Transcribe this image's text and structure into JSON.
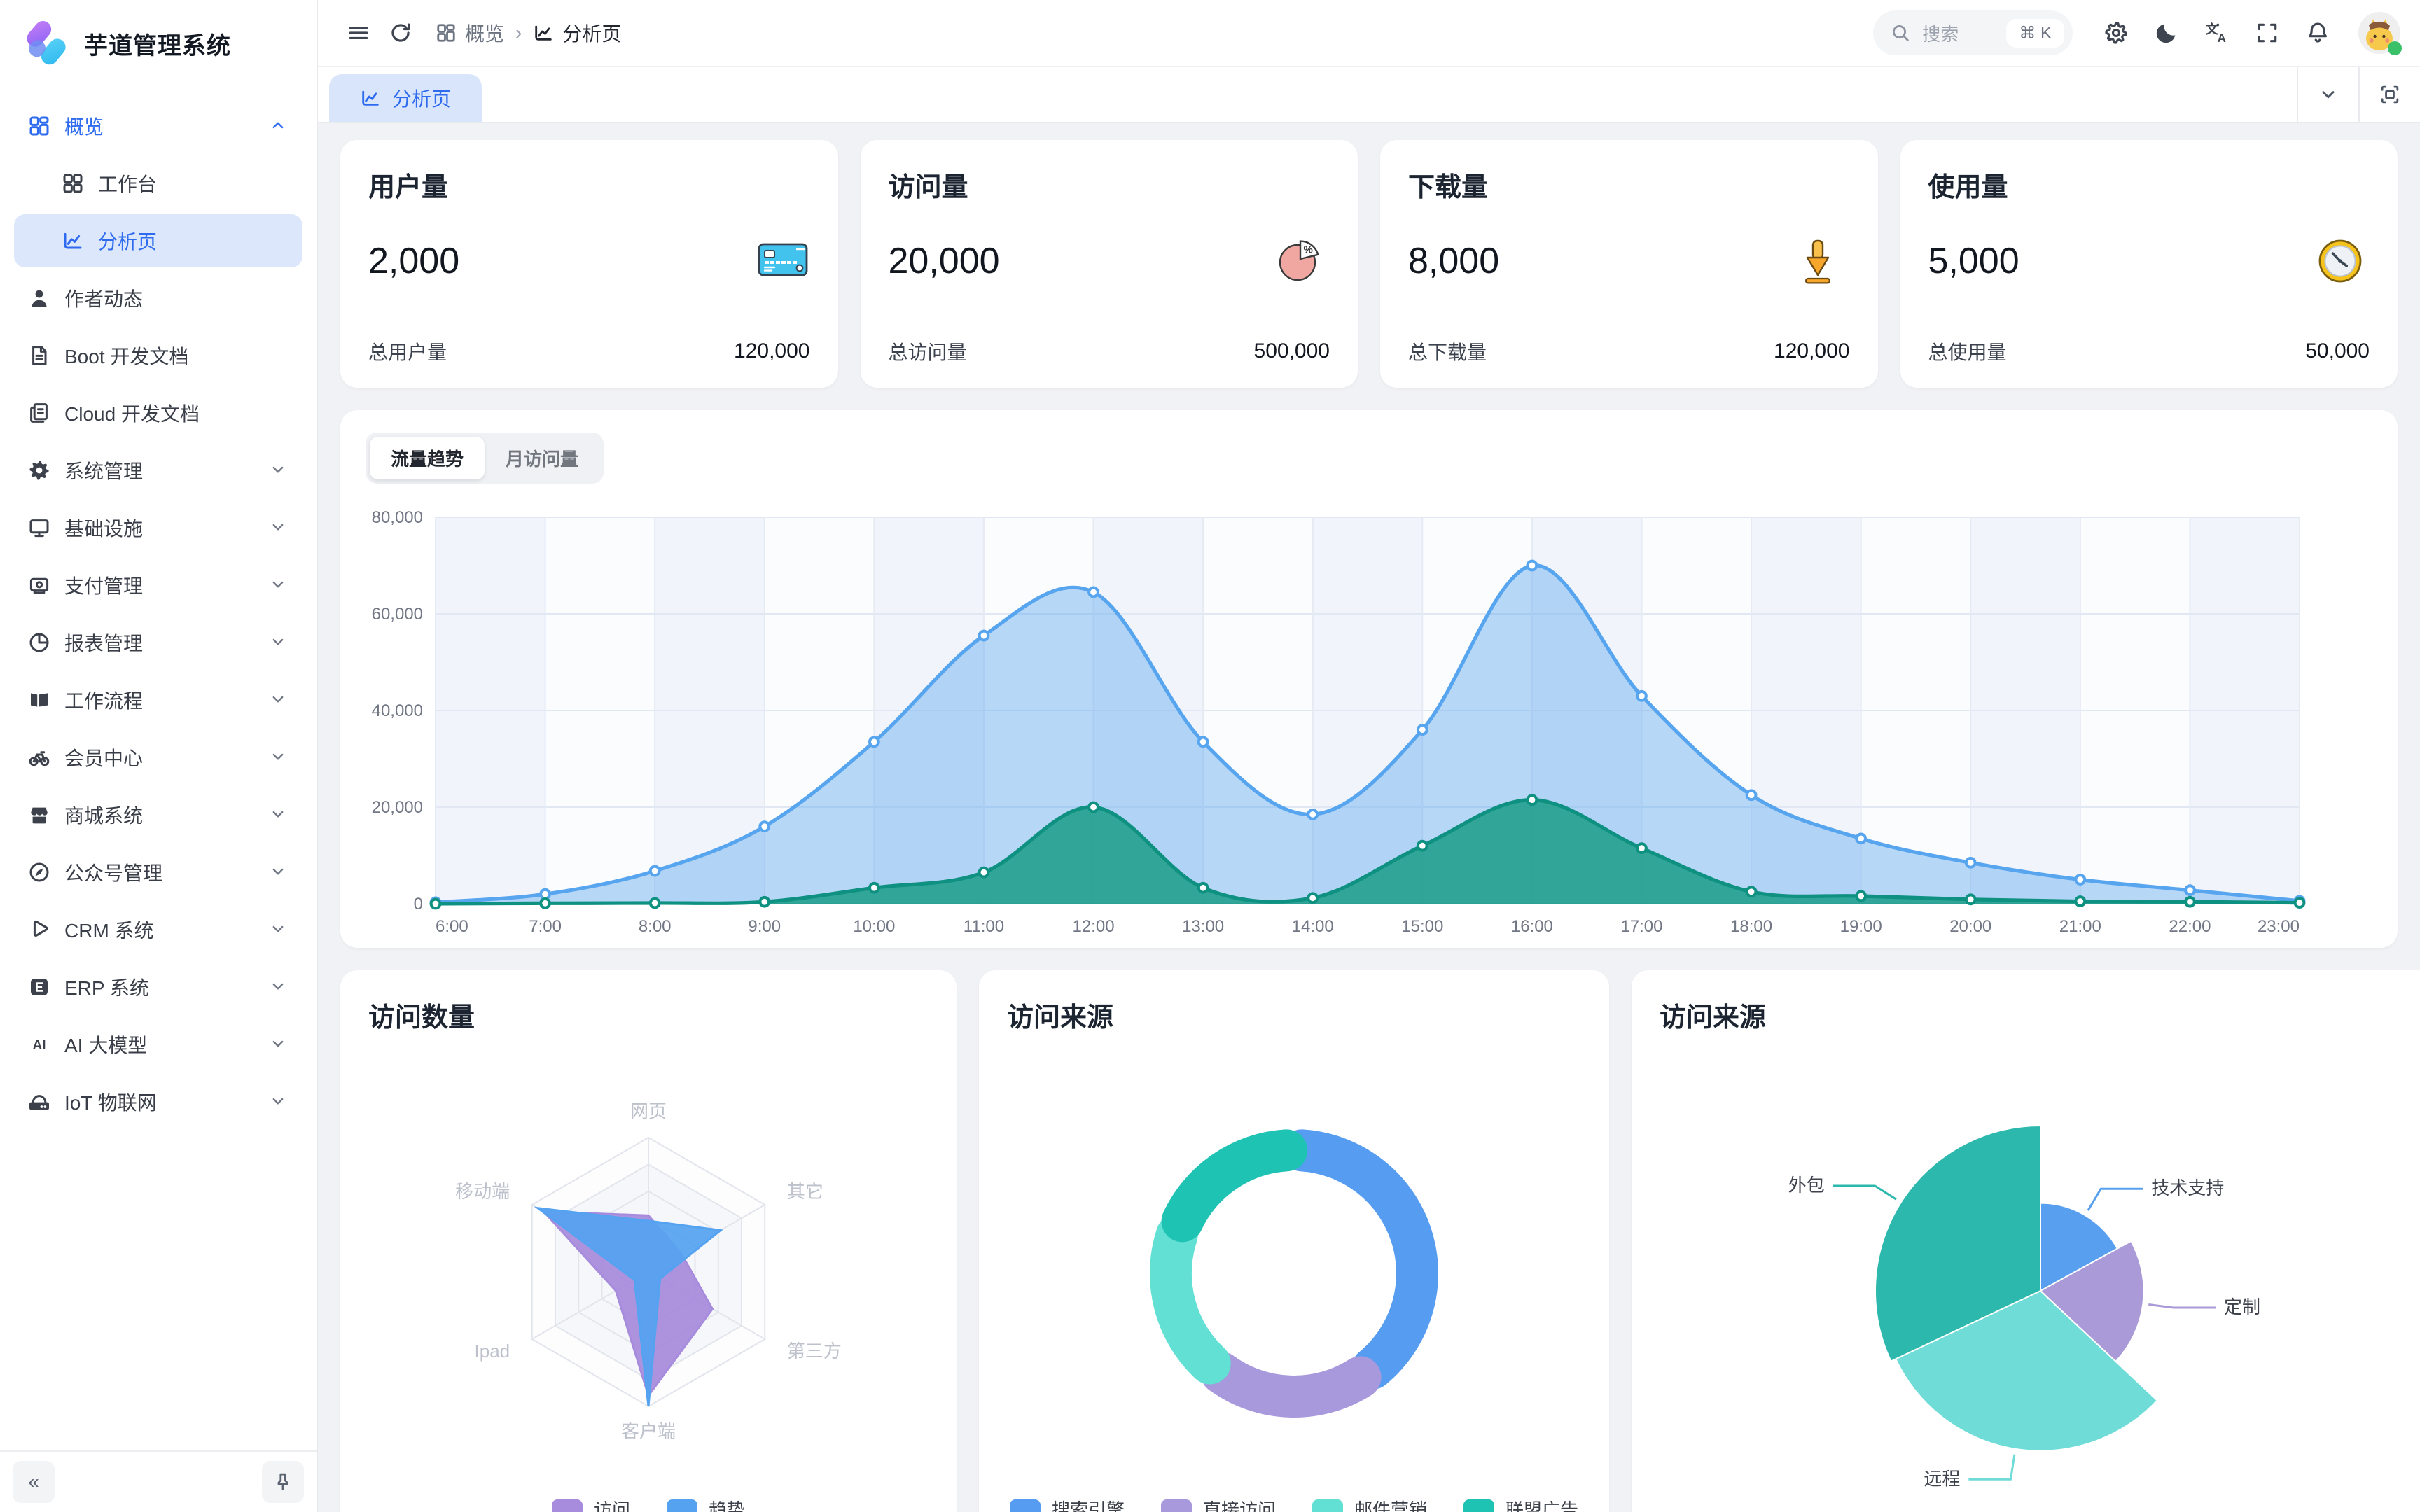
{
  "app": {
    "title": "芋道管理系统"
  },
  "colors": {
    "primary": "#2e6bef",
    "sidebar_active_bg": "#dce7fb",
    "logo_purple": "#a86cf5",
    "logo_cyan": "#38c4f2"
  },
  "sidebar": {
    "collapse_label": "«",
    "items": [
      {
        "label": "概览",
        "icon": "grid",
        "parent_active": true,
        "expanded": true,
        "children": [
          {
            "label": "工作台",
            "icon": "workbench"
          },
          {
            "label": "分析页",
            "icon": "chart-line",
            "active": true
          }
        ]
      },
      {
        "label": "作者动态",
        "icon": "user"
      },
      {
        "label": "Boot 开发文档",
        "icon": "doc"
      },
      {
        "label": "Cloud 开发文档",
        "icon": "docs"
      },
      {
        "label": "系统管理",
        "icon": "gear",
        "chevron": true
      },
      {
        "label": "基础设施",
        "icon": "monitor",
        "chevron": true
      },
      {
        "label": "支付管理",
        "icon": "wallet",
        "chevron": true
      },
      {
        "label": "报表管理",
        "icon": "pie",
        "chevron": true
      },
      {
        "label": "工作流程",
        "icon": "workflow",
        "chevron": true
      },
      {
        "label": "会员中心",
        "icon": "bicycle",
        "chevron": true
      },
      {
        "label": "商城系统",
        "icon": "shop",
        "chevron": true
      },
      {
        "label": "公众号管理",
        "icon": "compass",
        "chevron": true
      },
      {
        "label": "CRM 系统",
        "icon": "crm",
        "chevron": true
      },
      {
        "label": "ERP 系统",
        "icon": "erp",
        "chevron": true
      },
      {
        "label": "AI 大模型",
        "icon": "ai",
        "chevron": true
      },
      {
        "label": "IoT 物联网",
        "icon": "iot",
        "chevron": true
      }
    ]
  },
  "header": {
    "breadcrumb": [
      {
        "label": "概览",
        "icon": "grid"
      },
      {
        "label": "分析页",
        "icon": "chart-line"
      }
    ],
    "search": {
      "placeholder": "搜索",
      "shortcut": "⌘ K"
    },
    "actions": [
      "settings",
      "moon",
      "translate",
      "fullscreen",
      "bell"
    ]
  },
  "tabbar": {
    "tabs": [
      {
        "label": "分析页",
        "icon": "chart-line",
        "active": true
      }
    ]
  },
  "stats": [
    {
      "title": "用户量",
      "value": "2,000",
      "icon": "bank-card",
      "total_label": "总用户量",
      "total_value": "120,000"
    },
    {
      "title": "访问量",
      "value": "20,000",
      "icon": "pie-percent",
      "total_label": "总访问量",
      "total_value": "500,000"
    },
    {
      "title": "下载量",
      "value": "8,000",
      "icon": "download",
      "total_label": "总下载量",
      "total_value": "120,000"
    },
    {
      "title": "使用量",
      "value": "5,000",
      "icon": "clock",
      "total_label": "总使用量",
      "total_value": "50,000"
    }
  ],
  "traffic": {
    "tabs": [
      "流量趋势",
      "月访问量"
    ],
    "active": 0
  },
  "chart_data": [
    {
      "id": "traffic-trend",
      "type": "area",
      "x": [
        "6:00",
        "7:00",
        "8:00",
        "9:00",
        "10:00",
        "11:00",
        "12:00",
        "13:00",
        "14:00",
        "15:00",
        "16:00",
        "17:00",
        "18:00",
        "19:00",
        "20:00",
        "21:00",
        "22:00",
        "23:00"
      ],
      "ylim": [
        0,
        80000
      ],
      "yticks": [
        0,
        20000,
        40000,
        60000,
        80000
      ],
      "grid": true,
      "series": [
        {
          "name": "visits",
          "color": "#57a5ef",
          "fill": "rgba(87,165,239,0.42)",
          "values": [
            300,
            2000,
            6800,
            16000,
            33500,
            55500,
            64500,
            33500,
            18500,
            36000,
            70000,
            43000,
            22500,
            13500,
            8500,
            5000,
            2800,
            600
          ]
        },
        {
          "name": "downloads",
          "color": "#0e9180",
          "fill": "rgba(31,158,138,0.88)",
          "values": [
            0,
            100,
            150,
            400,
            3300,
            6500,
            20000,
            3300,
            1200,
            12000,
            21500,
            11500,
            2500,
            1600,
            900,
            500,
            400,
            200
          ]
        }
      ]
    },
    {
      "id": "visit-count-radar",
      "type": "radar",
      "title": "访问数量",
      "axes": [
        "网页",
        "其它",
        "第三方",
        "客户端",
        "Ipad",
        "移动端"
      ],
      "max": 10000,
      "series": [
        {
          "name": "访问",
          "color": "#a78bdc",
          "values": [
            4200,
            2800,
            5500,
            9200,
            2800,
            9000
          ]
        },
        {
          "name": "趋势",
          "color": "#55a3f0",
          "values": [
            3800,
            6200,
            1000,
            10000,
            1200,
            9500
          ]
        }
      ],
      "legend_position": "bottom"
    },
    {
      "id": "visit-source-donut",
      "type": "pie",
      "subtype": "donut",
      "title": "访问来源",
      "legend_position": "bottom",
      "slices": [
        {
          "name": "搜索引擎",
          "value": 40,
          "color": "#569cf0"
        },
        {
          "name": "直接访问",
          "value": 21,
          "color": "#a898dc"
        },
        {
          "name": "邮件营销",
          "value": 20,
          "color": "#63e0d4"
        },
        {
          "name": "联盟广告",
          "value": 19,
          "color": "#1fc3b4"
        }
      ]
    },
    {
      "id": "visit-source-rose",
      "type": "pie",
      "subtype": "rose",
      "title": "访问来源",
      "slices": [
        {
          "name": "技术支持",
          "value": 17,
          "color": "#58a0ef"
        },
        {
          "name": "定制",
          "value": 20,
          "color": "#ab9ad8"
        },
        {
          "name": "远程",
          "value": 31,
          "color": "#6fdcd7"
        },
        {
          "name": "外包",
          "value": 32,
          "color": "#2cb8ac"
        }
      ]
    }
  ]
}
